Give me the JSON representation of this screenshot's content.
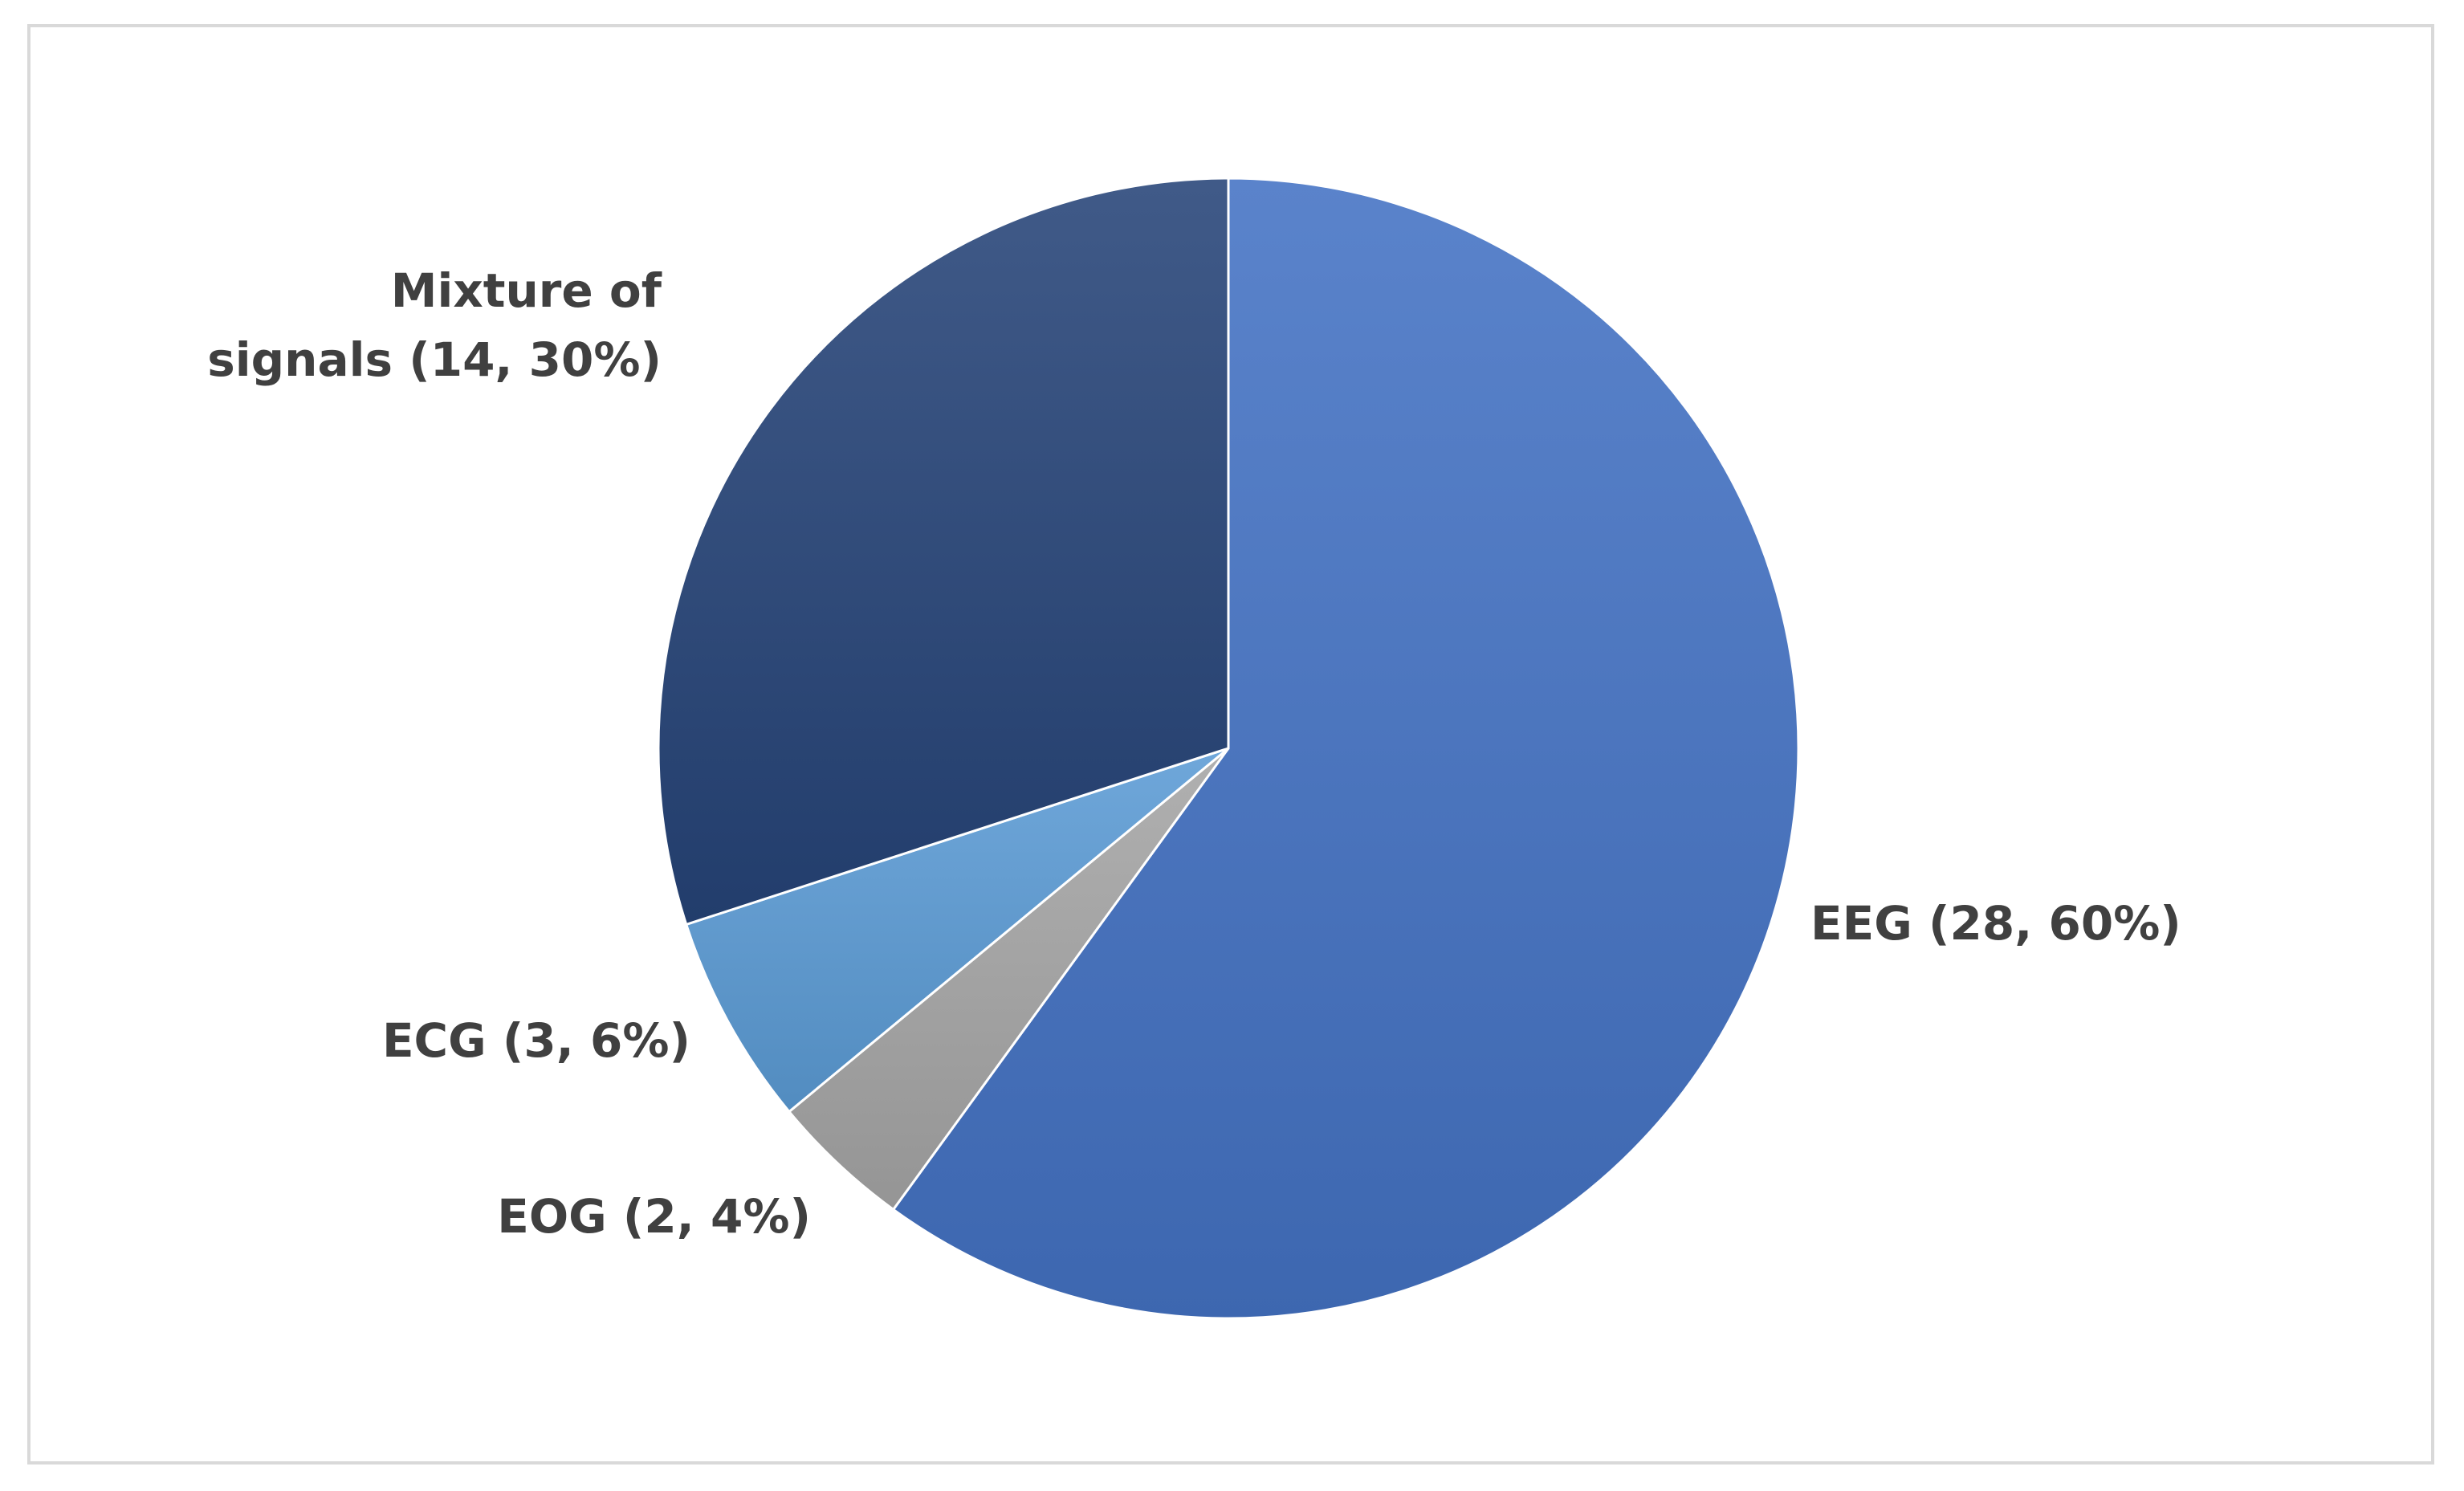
{
  "chart_data": {
    "type": "pie",
    "title": "",
    "start_angle_deg": 0,
    "direction": "clockwise",
    "slices": [
      {
        "label": "EEG",
        "count": 28,
        "percent": 60,
        "color": "#4472c4",
        "label_text": "EEG (28, 60%)"
      },
      {
        "label": "EOG",
        "count": 2,
        "percent": 4,
        "color": "#a5a5a5",
        "label_text": "EOG (2, 4%)"
      },
      {
        "label": "ECG",
        "count": 3,
        "percent": 6,
        "color": "#5b9bd5",
        "label_text": "ECG (3, 6%)"
      },
      {
        "label": "Mixture of signals",
        "count": 14,
        "percent": 30,
        "color": "#264478",
        "label_text": [
          "Mixture of",
          "signals (14, 30%)"
        ]
      }
    ]
  }
}
